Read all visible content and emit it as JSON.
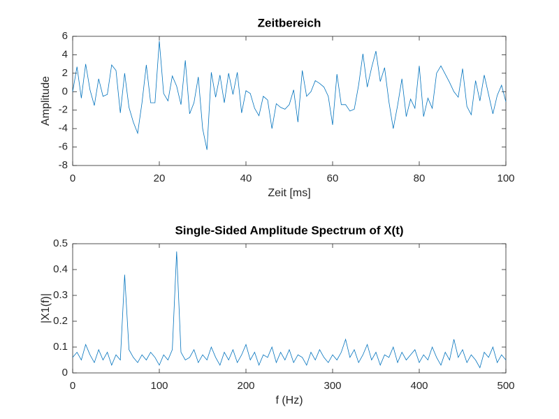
{
  "chart_data": [
    {
      "type": "line",
      "title": "Zeitbereich",
      "xlabel": "Zeit [ms]",
      "ylabel": "Amplitude",
      "x": [
        0,
        1,
        2,
        3,
        4,
        5,
        6,
        7,
        8,
        9,
        10,
        11,
        12,
        13,
        14,
        15,
        16,
        17,
        18,
        19,
        20,
        21,
        22,
        23,
        24,
        25,
        26,
        27,
        28,
        29,
        30,
        31,
        32,
        33,
        34,
        35,
        36,
        37,
        38,
        39,
        40,
        41,
        42,
        43,
        44,
        45,
        46,
        47,
        48,
        49,
        50,
        51,
        52,
        53,
        54,
        55,
        56,
        57,
        58,
        59,
        60,
        61,
        62,
        63,
        64,
        65,
        66,
        67,
        68,
        69,
        70,
        71,
        72,
        73,
        74,
        75,
        76,
        77,
        78,
        79,
        80,
        81,
        82,
        83,
        84,
        85,
        86,
        87,
        88,
        89,
        90,
        91,
        92,
        93,
        94,
        95,
        96,
        97,
        98,
        99,
        100
      ],
      "values": [
        0,
        2.7,
        -0.7,
        3.0,
        0.2,
        -1.5,
        1.4,
        -0.5,
        -0.3,
        2.9,
        2.3,
        -2.3,
        2.0,
        -1.7,
        -3.3,
        -4.5,
        -1.2,
        2.9,
        -1.2,
        -1.2,
        5.5,
        -0.2,
        -1.0,
        1.7,
        0.6,
        -1.4,
        3.4,
        -2.4,
        -1.2,
        1.6,
        -4.0,
        -6.3,
        2.1,
        -0.6,
        1.8,
        -1.2,
        2.0,
        -0.3,
        2.1,
        -2.3,
        0.1,
        -0.2,
        -1.8,
        -2.6,
        -0.5,
        -0.9,
        -4.0,
        -1.3,
        -1.7,
        -1.9,
        -1.4,
        0.2,
        -3.3,
        2.3,
        -0.5,
        0.0,
        1.2,
        0.9,
        0.5,
        -0.5,
        -3.6,
        1.9,
        -1.4,
        -1.4,
        -2.1,
        -1.9,
        0.7,
        4.1,
        0.5,
        2.6,
        4.4,
        1.1,
        2.6,
        -1.1,
        -4.0,
        -1.5,
        1.4,
        -2.7,
        -0.8,
        -1.8,
        2.8,
        -2.7,
        -0.7,
        -1.8,
        2.0,
        2.8,
        1.9,
        1.0,
        0.0,
        -0.6,
        2.5,
        -1.6,
        -2.5,
        1.2,
        -1.0,
        1.8,
        -0.3,
        -2.4,
        -0.4,
        0.7,
        -1.1
      ],
      "color": "#0072bd",
      "xlim": [
        0,
        100
      ],
      "xticks": [
        0,
        20,
        40,
        60,
        80,
        100
      ],
      "ylim": [
        -8,
        6
      ],
      "yticks": [
        -8,
        -6,
        -4,
        -2,
        0,
        2,
        4,
        6
      ]
    },
    {
      "type": "line",
      "title": "Single-Sided Amplitude Spectrum of X(t)",
      "xlabel": "f (Hz)",
      "ylabel": "|X1(f)|",
      "x": [
        0,
        5,
        10,
        15,
        20,
        25,
        30,
        35,
        40,
        45,
        50,
        55,
        60,
        65,
        70,
        75,
        80,
        85,
        90,
        95,
        100,
        105,
        110,
        115,
        120,
        125,
        130,
        135,
        140,
        145,
        150,
        155,
        160,
        165,
        170,
        175,
        180,
        185,
        190,
        195,
        200,
        205,
        210,
        215,
        220,
        225,
        230,
        235,
        240,
        245,
        250,
        255,
        260,
        265,
        270,
        275,
        280,
        285,
        290,
        295,
        300,
        305,
        310,
        315,
        320,
        325,
        330,
        335,
        340,
        345,
        350,
        355,
        360,
        365,
        370,
        375,
        380,
        385,
        390,
        395,
        400,
        405,
        410,
        415,
        420,
        425,
        430,
        435,
        440,
        445,
        450,
        455,
        460,
        465,
        470,
        475,
        480,
        485,
        490,
        495,
        500
      ],
      "values": [
        0.06,
        0.08,
        0.05,
        0.11,
        0.07,
        0.04,
        0.09,
        0.05,
        0.08,
        0.03,
        0.07,
        0.05,
        0.38,
        0.09,
        0.06,
        0.04,
        0.07,
        0.05,
        0.08,
        0.06,
        0.03,
        0.07,
        0.05,
        0.09,
        0.47,
        0.08,
        0.05,
        0.06,
        0.09,
        0.04,
        0.07,
        0.05,
        0.1,
        0.06,
        0.03,
        0.08,
        0.05,
        0.09,
        0.04,
        0.07,
        0.11,
        0.05,
        0.08,
        0.03,
        0.07,
        0.06,
        0.1,
        0.04,
        0.08,
        0.05,
        0.09,
        0.04,
        0.07,
        0.06,
        0.03,
        0.08,
        0.05,
        0.09,
        0.06,
        0.04,
        0.07,
        0.05,
        0.08,
        0.13,
        0.06,
        0.09,
        0.04,
        0.07,
        0.11,
        0.05,
        0.08,
        0.03,
        0.07,
        0.06,
        0.1,
        0.04,
        0.08,
        0.05,
        0.07,
        0.09,
        0.04,
        0.07,
        0.05,
        0.1,
        0.06,
        0.03,
        0.08,
        0.05,
        0.13,
        0.06,
        0.09,
        0.04,
        0.07,
        0.05,
        0.02,
        0.08,
        0.06,
        0.1,
        0.04,
        0.07,
        0.05
      ],
      "color": "#0072bd",
      "xlim": [
        0,
        500
      ],
      "xticks": [
        0,
        100,
        200,
        300,
        400,
        500
      ],
      "ylim": [
        0,
        0.5
      ],
      "yticks": [
        0,
        0.1,
        0.2,
        0.3,
        0.4,
        0.5
      ]
    }
  ]
}
